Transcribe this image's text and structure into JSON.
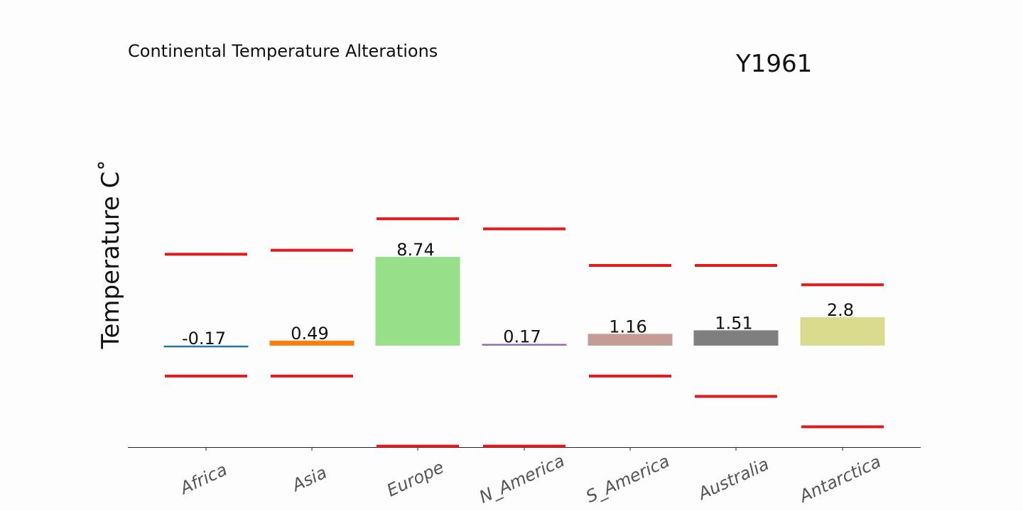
{
  "chart_data": {
    "type": "bar",
    "title": "Continental Temperature Alterations",
    "year_label": "Y1961",
    "ylabel": "Temperature C˚",
    "xlabel": "",
    "categories": [
      "Africa",
      "Asia",
      "Europe",
      "N_America",
      "S_America",
      "Australia",
      "Antarctica"
    ],
    "values": [
      -0.17,
      0.49,
      8.74,
      0.17,
      1.16,
      1.51,
      2.8
    ],
    "value_labels": [
      "-0.17",
      "0.49",
      "8.74",
      "0.17",
      "1.16",
      "1.51",
      "2.8"
    ],
    "range_upper": [
      9.0,
      9.4,
      12.5,
      11.5,
      7.9,
      7.9,
      6.0
    ],
    "range_lower": [
      -3.0,
      -3.0,
      -9.9,
      -9.9,
      -3.0,
      -5.0,
      -8.0
    ],
    "ylim": [
      -10.0,
      24.0
    ],
    "grid": false,
    "legend": "none",
    "bar_colors": [
      "#1f77b4",
      "#ff7f0e",
      "#98df8a",
      "#9467bd",
      "#c49c94",
      "#7f7f7f",
      "#dbdb8d"
    ],
    "range_line_color": "#e31a1c"
  }
}
